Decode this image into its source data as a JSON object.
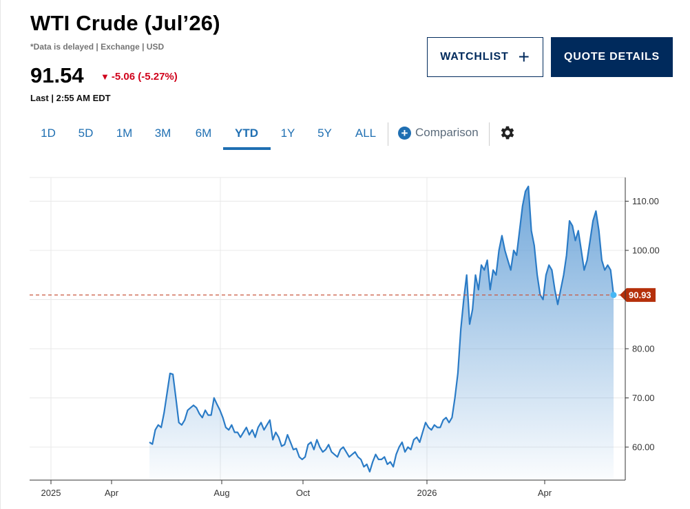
{
  "header": {
    "title": "WTI Crude (Jul’26)",
    "meta": "*Data is delayed | Exchange | USD",
    "price": "91.54",
    "change": "-5.06 (-5.27%)",
    "last": "Last | 2:55 AM EDT"
  },
  "buttons": {
    "watchlist": "WATCHLIST",
    "quote_details": "QUOTE DETAILS"
  },
  "ranges": [
    "1D",
    "5D",
    "1M",
    "3M",
    "6M",
    "YTD",
    "1Y",
    "5Y",
    "ALL"
  ],
  "active_range": "YTD",
  "comparison_label": "Comparison",
  "colors": {
    "line": "#2a7bc6",
    "fill_top": "#6aa3d8",
    "ref_line": "#c8553d",
    "tag": "#b5300b",
    "accent": "#1f6fb2",
    "navy": "#002a5c"
  },
  "icons": {
    "add": "plus-icon",
    "compare": "plus-circle-icon",
    "settings": "gear-icon",
    "down": "down-triangle-icon"
  },
  "chart_data": {
    "type": "area",
    "x_axis": [
      "2025",
      "Apr",
      "Aug",
      "Oct",
      "2026",
      "Apr"
    ],
    "y_ticks": [
      "110.00",
      "100.00",
      "80.00",
      "70.00",
      "60.00"
    ],
    "ylim": [
      53,
      115
    ],
    "last_value_label": "90.93",
    "reference_line": 90.93,
    "grid": true,
    "series": [
      {
        "values": [
          61,
          60.6,
          63.5,
          64.5,
          64,
          67,
          71,
          75,
          74.8,
          70,
          65,
          64.5,
          65.5,
          67.5,
          68,
          68.5,
          68,
          66.8,
          66,
          67.5,
          66.5,
          66.5,
          70,
          68.7,
          67.5,
          66,
          64,
          63.5,
          64.5,
          63,
          63,
          62,
          63,
          64,
          62.5,
          63.5,
          62,
          64,
          65,
          63.5,
          64.5,
          65.5,
          61.5,
          63,
          62,
          60.2,
          60.5,
          62.5,
          61,
          59.5,
          59.7,
          58,
          57.5,
          58,
          60.5,
          61,
          59.5,
          61.5,
          60,
          59,
          59.5,
          60.5,
          59,
          58.5,
          58,
          59.5,
          60,
          59,
          58,
          58.5,
          59,
          58,
          57.5,
          56,
          56.5,
          55,
          57,
          58.5,
          57.5,
          57.5,
          58,
          56.5,
          57,
          56,
          58.5,
          60,
          61,
          59,
          60,
          59.5,
          61.5,
          62,
          61,
          63,
          65,
          64,
          63.5,
          64.5,
          64,
          64,
          65.5,
          66,
          65,
          66,
          70,
          75,
          84,
          90,
          95,
          85,
          88,
          95,
          92,
          97,
          96,
          98,
          92,
          96,
          95,
          100,
          103,
          100,
          98,
          96,
          100,
          99,
          104,
          109,
          112,
          113,
          104,
          101,
          95,
          91,
          90,
          95,
          97,
          96,
          92,
          89,
          92,
          95,
          99,
          106,
          105,
          102,
          104,
          100,
          96,
          98,
          102,
          106,
          108,
          104,
          98,
          96,
          97,
          96,
          90.93
        ]
      }
    ]
  }
}
